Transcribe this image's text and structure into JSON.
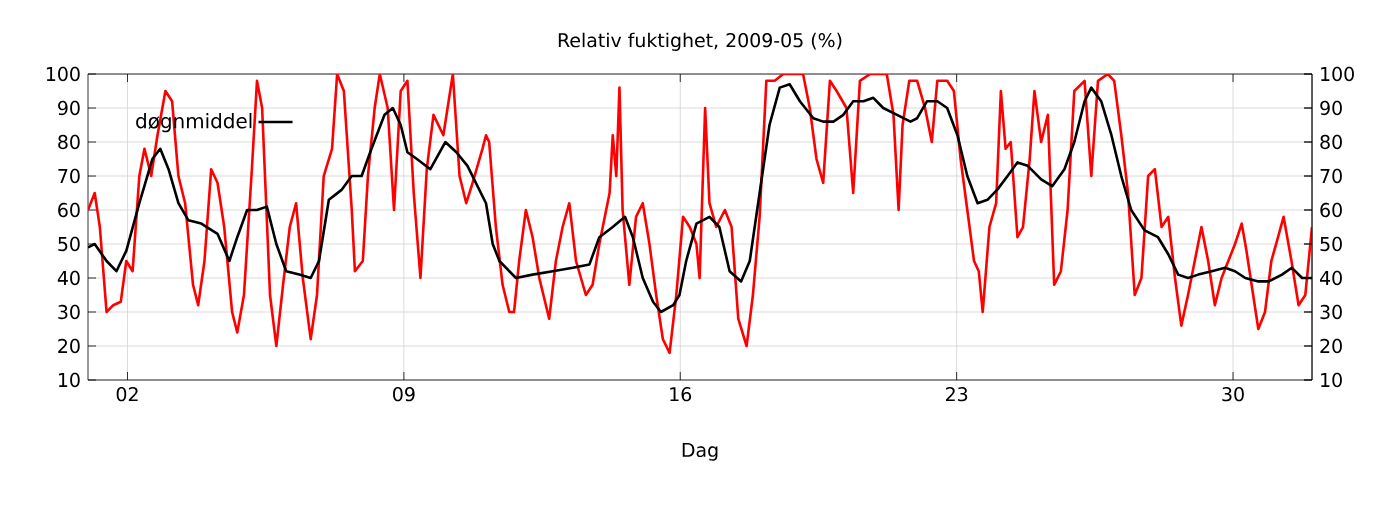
{
  "chart_data": {
    "type": "line",
    "title": "Relativ fuktighet, 2009-05 (%)",
    "xlabel": "Dag",
    "xlim": [
      1,
      32
    ],
    "xticks": [
      {
        "value": 2,
        "label": "02"
      },
      {
        "value": 9,
        "label": "09"
      },
      {
        "value": 16,
        "label": "16"
      },
      {
        "value": 23,
        "label": "23"
      },
      {
        "value": 30,
        "label": "30"
      }
    ],
    "ylim": [
      10,
      100
    ],
    "yticks": [
      10,
      20,
      30,
      40,
      50,
      60,
      70,
      80,
      90,
      100
    ],
    "y2lim": [
      10,
      100
    ],
    "y2ticks": [
      10,
      20,
      30,
      40,
      50,
      60,
      70,
      80,
      90,
      100
    ],
    "grid": true,
    "legend": "top left",
    "marker": "none",
    "line_style": "solid",
    "series": [
      {
        "color": "#ff0000",
        "x": [
          1.0,
          1.17,
          1.3,
          1.47,
          1.64,
          1.83,
          1.97,
          2.13,
          2.3,
          2.43,
          2.6,
          2.76,
          2.96,
          3.13,
          3.29,
          3.46,
          3.66,
          3.79,
          3.95,
          4.12,
          4.28,
          4.45,
          4.65,
          4.78,
          4.95,
          5.15,
          5.28,
          5.41,
          5.61,
          5.77,
          5.94,
          6.11,
          6.27,
          6.44,
          6.64,
          6.8,
          6.97,
          7.18,
          7.31,
          7.48,
          7.68,
          7.76,
          7.96,
          8.09,
          8.26,
          8.39,
          8.59,
          8.75,
          8.92,
          9.09,
          9.25,
          9.42,
          9.58,
          9.75,
          10.0,
          10.24,
          10.41,
          10.58,
          10.74,
          10.99,
          11.08,
          11.16,
          11.33,
          11.5,
          11.67,
          11.79,
          11.92,
          12.09,
          12.26,
          12.43,
          12.68,
          12.85,
          13.02,
          13.19,
          13.36,
          13.61,
          13.78,
          13.95,
          14.21,
          14.29,
          14.38,
          14.46,
          14.54,
          14.71,
          14.88,
          15.05,
          15.22,
          15.39,
          15.56,
          15.73,
          15.9,
          16.07,
          16.24,
          16.41,
          16.49,
          16.63,
          16.74,
          16.91,
          17.13,
          17.3,
          17.47,
          17.68,
          17.84,
          18.01,
          18.18,
          18.39,
          18.61,
          18.86,
          19.11,
          19.28,
          19.45,
          19.62,
          19.79,
          19.96,
          20.21,
          20.38,
          20.55,
          20.81,
          21.06,
          21.23,
          21.4,
          21.53,
          21.63,
          21.8,
          22.0,
          22.2,
          22.37,
          22.51,
          22.76,
          22.93,
          23.1,
          23.27,
          23.44,
          23.56,
          23.66,
          23.83,
          24.0,
          24.12,
          24.24,
          24.37,
          24.54,
          24.68,
          24.85,
          24.97,
          25.14,
          25.31,
          25.47,
          25.64,
          25.81,
          25.98,
          26.24,
          26.41,
          26.58,
          26.83,
          26.99,
          27.17,
          27.34,
          27.51,
          27.68,
          27.85,
          28.02,
          28.19,
          28.36,
          28.53,
          28.69,
          28.86,
          29.03,
          29.2,
          29.37,
          29.54,
          29.71,
          29.88,
          30.05,
          30.22,
          30.34,
          30.47,
          30.64,
          30.81,
          30.97,
          31.14,
          31.28,
          31.48,
          31.66,
          31.83,
          32.0
        ],
        "values": [
          60,
          65,
          55,
          30,
          32,
          33,
          45,
          42,
          70,
          78,
          70,
          82,
          95,
          92,
          70,
          62,
          38,
          32,
          45,
          72,
          68,
          55,
          30,
          24,
          35,
          72,
          98,
          90,
          35,
          20,
          38,
          55,
          62,
          40,
          22,
          35,
          70,
          78,
          100,
          95,
          60,
          42,
          45,
          70,
          90,
          100,
          90,
          60,
          95,
          98,
          65,
          40,
          72,
          88,
          82,
          100,
          70,
          62,
          68,
          78,
          82,
          80,
          55,
          38,
          30,
          30,
          45,
          60,
          52,
          40,
          28,
          45,
          55,
          62,
          45,
          35,
          38,
          50,
          65,
          82,
          70,
          96,
          60,
          38,
          58,
          62,
          50,
          35,
          22,
          18,
          35,
          58,
          55,
          50,
          40,
          90,
          62,
          55,
          60,
          55,
          28,
          20,
          35,
          58,
          98,
          98,
          100,
          100,
          100,
          90,
          75,
          68,
          98,
          95,
          90,
          65,
          98,
          100,
          100,
          100,
          88,
          60,
          85,
          98,
          98,
          90,
          80,
          98,
          98,
          95,
          75,
          60,
          45,
          42,
          30,
          55,
          62,
          95,
          78,
          80,
          52,
          55,
          75,
          95,
          80,
          88,
          38,
          42,
          60,
          95,
          98,
          70,
          98,
          100,
          98,
          82,
          65,
          35,
          40,
          70,
          72,
          55,
          58,
          40,
          26,
          35,
          45,
          55,
          45,
          32,
          40,
          45,
          50,
          56,
          48,
          38,
          25,
          30,
          45,
          52,
          58,
          45,
          32,
          35,
          55
        ]
      },
      {
        "name": "døgnmiddel",
        "color": "#000000",
        "x": [
          1.0,
          1.17,
          1.47,
          1.72,
          1.97,
          2.3,
          2.63,
          2.83,
          3.04,
          3.29,
          3.54,
          3.87,
          4.28,
          4.58,
          4.78,
          5.03,
          5.28,
          5.53,
          5.77,
          6.02,
          6.35,
          6.64,
          6.85,
          7.1,
          7.43,
          7.68,
          7.93,
          8.18,
          8.51,
          8.72,
          8.92,
          9.09,
          9.33,
          9.67,
          10.05,
          10.33,
          10.61,
          11.08,
          11.25,
          11.42,
          11.84,
          12.26,
          12.77,
          13.28,
          13.7,
          13.95,
          14.29,
          14.6,
          14.8,
          15.05,
          15.31,
          15.51,
          15.82,
          15.98,
          16.15,
          16.41,
          16.74,
          16.99,
          17.25,
          17.54,
          17.76,
          18.01,
          18.26,
          18.52,
          18.77,
          19.03,
          19.37,
          19.62,
          19.88,
          20.13,
          20.38,
          20.64,
          20.89,
          21.14,
          21.49,
          21.83,
          22.0,
          22.25,
          22.51,
          22.76,
          23.02,
          23.27,
          23.53,
          23.78,
          24.03,
          24.29,
          24.54,
          24.8,
          25.14,
          25.42,
          25.73,
          25.98,
          26.24,
          26.41,
          26.66,
          26.92,
          27.17,
          27.42,
          27.76,
          28.1,
          28.36,
          28.61,
          28.86,
          29.12,
          29.46,
          29.8,
          30.05,
          30.31,
          30.64,
          30.9,
          31.24,
          31.49,
          31.75,
          32.0
        ],
        "values": [
          49,
          50,
          45,
          42,
          48,
          62,
          75,
          78,
          72,
          62,
          57,
          56,
          53,
          45,
          52,
          60,
          60,
          61,
          50,
          42,
          41,
          40,
          45,
          63,
          66,
          70,
          70,
          78,
          88,
          90,
          85,
          77,
          75,
          72,
          80,
          77,
          73,
          62,
          50,
          45,
          40,
          41,
          42,
          43,
          44,
          52,
          55,
          58,
          52,
          40,
          33,
          30,
          32,
          35,
          45,
          56,
          58,
          55,
          42,
          39,
          45,
          65,
          85,
          96,
          97,
          92,
          87,
          86,
          86,
          88,
          92,
          92,
          93,
          90,
          88,
          86,
          87,
          92,
          92,
          90,
          82,
          70,
          62,
          63,
          66,
          70,
          74,
          73,
          69,
          67,
          72,
          80,
          92,
          96,
          92,
          82,
          70,
          60,
          54,
          52,
          47,
          41,
          40,
          41,
          42,
          43,
          42,
          40,
          39,
          39,
          41,
          43,
          40,
          40
        ]
      }
    ]
  }
}
